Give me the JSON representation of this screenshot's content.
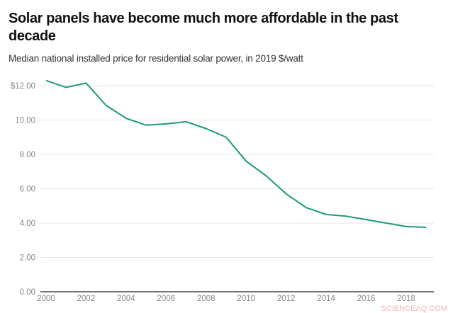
{
  "chart_data": {
    "type": "line",
    "title": "Solar panels have become much more affordable in the past decade",
    "subtitle": "Median national installed price for residential solar power, in 2019 $/watt",
    "xlabel": "",
    "ylabel": "",
    "x": [
      2000,
      2001,
      2002,
      2003,
      2004,
      2005,
      2006,
      2007,
      2008,
      2009,
      2010,
      2011,
      2012,
      2013,
      2014,
      2015,
      2016,
      2017,
      2018,
      2019
    ],
    "series": [
      {
        "values": [
          12.3,
          11.9,
          12.15,
          10.85,
          10.1,
          9.7,
          9.78,
          9.9,
          9.5,
          9.0,
          7.6,
          6.75,
          5.7,
          4.9,
          4.5,
          4.4,
          4.2,
          4.0,
          3.8,
          3.75
        ],
        "color": "#1a9a7a"
      }
    ],
    "xlim": [
      2000,
      2019
    ],
    "ylim": [
      0,
      12
    ],
    "x_ticks": [
      2000,
      2002,
      2004,
      2006,
      2008,
      2010,
      2012,
      2014,
      2016,
      2018
    ],
    "x_tick_labels": [
      "2000",
      "2002",
      "2004",
      "2006",
      "2008",
      "2010",
      "2012",
      "2014",
      "2016",
      "2018"
    ],
    "y_ticks": [
      0,
      2,
      4,
      6,
      8,
      10,
      12
    ],
    "y_tick_labels": [
      "0.00",
      "2.00",
      "4.00",
      "6.00",
      "8.00",
      "10.00",
      "$12.00"
    ],
    "grid": true,
    "legend": "none"
  },
  "watermark": "SCIENCEAQ.COM"
}
